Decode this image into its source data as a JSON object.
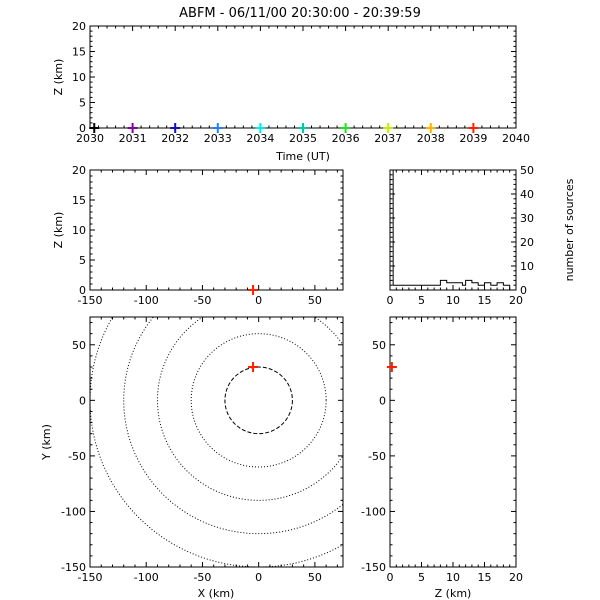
{
  "title": "ABFM - 06/11/00 20:30:00 - 20:39:59",
  "chart_data": [
    {
      "id": "time_height",
      "type": "scatter",
      "xlabel": "Time (UT)",
      "ylabel": "Z (km)",
      "xlim": [
        2030,
        2040
      ],
      "ylim": [
        0,
        20
      ],
      "xticks": [
        "2030",
        "2031",
        "2032",
        "2033",
        "2034",
        "2035",
        "2036",
        "2037",
        "2038",
        "2039",
        "2040"
      ],
      "yticks": [
        "0",
        "5",
        "10",
        "15",
        "20"
      ],
      "points": [
        {
          "x": 2030.1,
          "y": 0,
          "color": "#000000"
        },
        {
          "x": 2031.0,
          "y": 0,
          "color": "#8000a0"
        },
        {
          "x": 2032.0,
          "y": 0,
          "color": "#1010c0"
        },
        {
          "x": 2033.0,
          "y": 0,
          "color": "#2080ff"
        },
        {
          "x": 2034.0,
          "y": 0,
          "color": "#00e8e8"
        },
        {
          "x": 2035.0,
          "y": 0,
          "color": "#00c8a0"
        },
        {
          "x": 2036.0,
          "y": 0,
          "color": "#20e020"
        },
        {
          "x": 2037.0,
          "y": 0,
          "color": "#c0f000"
        },
        {
          "x": 2038.0,
          "y": 0,
          "color": "#ffb000"
        },
        {
          "x": 2039.0,
          "y": 0,
          "color": "#ff2000"
        }
      ]
    },
    {
      "id": "x_height",
      "type": "scatter",
      "xlabel": "",
      "ylabel": "Z (km)",
      "xlim": [
        -150,
        75
      ],
      "ylim": [
        0,
        20
      ],
      "xticks": [
        "-150",
        "-100",
        "-50",
        "0",
        "50"
      ],
      "yticks": [
        "0",
        "5",
        "10",
        "15",
        "20"
      ],
      "points": [
        {
          "x": -5,
          "y": 0,
          "color": "#ff2000"
        }
      ]
    },
    {
      "id": "height_histogram",
      "type": "bar",
      "xlabel": "",
      "ylabel": "number of sources",
      "xlim": [
        0,
        20
      ],
      "ylim": [
        0,
        50
      ],
      "xticks": [
        "0",
        "5",
        "10",
        "15",
        "20"
      ],
      "yticks": [
        "0",
        "10",
        "20",
        "30",
        "40",
        "50"
      ],
      "bin_edges": [
        0,
        0.5,
        1,
        1.5,
        2,
        2.5,
        3,
        3.5,
        4,
        4.5,
        5,
        5.5,
        6,
        6.5,
        7,
        7.5,
        8,
        8.5,
        9,
        9.5,
        10,
        10.5,
        11,
        11.5,
        12,
        12.5,
        13,
        13.5,
        14,
        14.5,
        15,
        15.5,
        16,
        16.5,
        17,
        17.5,
        18,
        18.5,
        19,
        19.5,
        20
      ],
      "counts": [
        50,
        2,
        2,
        2,
        2,
        2,
        2,
        2,
        2,
        2,
        2,
        2,
        2,
        2,
        2,
        2,
        4,
        4,
        3,
        3,
        3,
        3,
        3,
        2,
        4,
        4,
        3,
        3,
        2,
        2,
        3,
        3,
        2,
        2,
        3,
        3,
        2,
        2,
        0,
        0
      ]
    },
    {
      "id": "plan_view",
      "type": "scatter",
      "xlabel": "X (km)",
      "ylabel": "Y (km)",
      "xlim": [
        -150,
        75
      ],
      "ylim": [
        -150,
        75
      ],
      "xticks": [
        "-150",
        "-100",
        "-50",
        "0",
        "50"
      ],
      "yticks": [
        "-150",
        "-100",
        "-50",
        "0",
        "50"
      ],
      "range_rings_km": [
        30,
        60,
        90,
        120,
        150
      ],
      "ring_center": [
        0,
        0
      ],
      "points": [
        {
          "x": -5,
          "y": 30,
          "color": "#ff2000"
        }
      ]
    },
    {
      "id": "height_y",
      "type": "scatter",
      "xlabel": "Z (km)",
      "ylabel": "",
      "xlim": [
        0,
        20
      ],
      "ylim": [
        -150,
        75
      ],
      "xticks": [
        "0",
        "5",
        "10",
        "15",
        "20"
      ],
      "yticks": [
        "-150",
        "-100",
        "-50",
        "0",
        "50"
      ],
      "points": [
        {
          "x": 0.3,
          "y": 30,
          "color": "#ff2000"
        }
      ]
    }
  ]
}
